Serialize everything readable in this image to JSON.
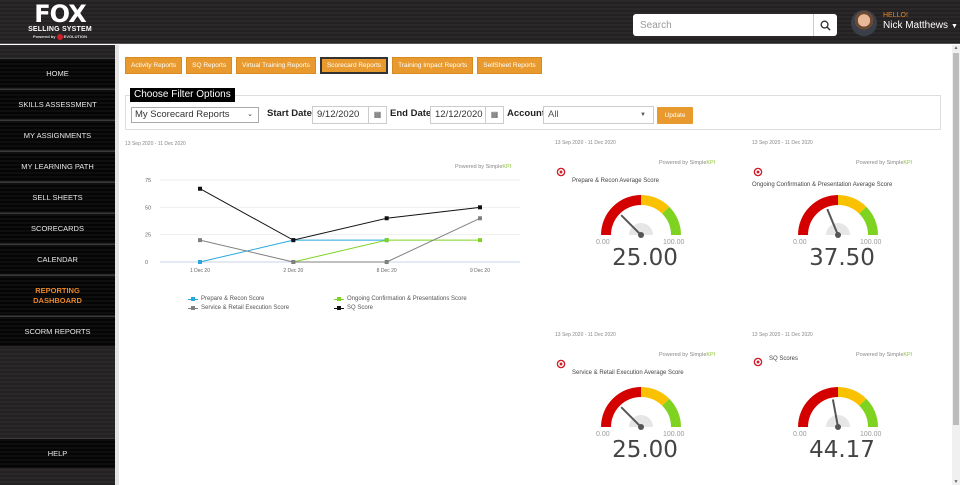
{
  "header": {
    "logo": {
      "main": "FOX",
      "sub": "SELLING SYSTEM",
      "powered": "Powered by",
      "brand": "EVOLUTION"
    },
    "search": {
      "placeholder": "Search",
      "value": ""
    },
    "user": {
      "greeting": "HELLO!",
      "name": "Nick Matthews"
    }
  },
  "sidebar": {
    "items": [
      {
        "label": "HOME"
      },
      {
        "label": "SKILLS ASSESSMENT"
      },
      {
        "label": "MY ASSIGNMENTS"
      },
      {
        "label": "MY LEARNING PATH"
      },
      {
        "label": "SELL SHEETS"
      },
      {
        "label": "SCORECARDS"
      },
      {
        "label": "CALENDAR"
      },
      {
        "label": "REPORTING DASHBOARD",
        "active": true
      },
      {
        "label": "SCORM REPORTS"
      }
    ],
    "help": "HELP"
  },
  "tabs": [
    {
      "label": "Activity Reports"
    },
    {
      "label": "SQ Reports"
    },
    {
      "label": "Virtual Training Reports"
    },
    {
      "label": "Scorecard Reports",
      "active": true
    },
    {
      "label": "Training Impact Reports"
    },
    {
      "label": "SellSheet Reports"
    }
  ],
  "filter": {
    "legend": "Choose Filter Options",
    "report_select": "My Scorecard Reports",
    "start_label": "Start Date",
    "start_value": "9/12/2020",
    "end_label": "End Date",
    "end_value": "12/12/2020",
    "account_label": "Account:",
    "account_value": "All",
    "update_label": "Update"
  },
  "date_range": "13 Sep 2020 - 11 Dec 2020",
  "powered_by": {
    "prefix": "Powered by Simple",
    "suffix": "KPI"
  },
  "colors": {
    "accent": "#e89a2e",
    "active_nav": "#e8862a",
    "gauge_red": "#d40000",
    "gauge_yellow": "#f9c100",
    "gauge_green": "#7ed321"
  },
  "chart_data": {
    "type": "line",
    "categories": [
      "1 Dec 20",
      "2 Dec 20",
      "8 Dec 20",
      "9 Dec 20"
    ],
    "yticks": [
      0,
      25,
      50,
      75
    ],
    "ylim": [
      0,
      80
    ],
    "grid": true,
    "legend_position": "bottom",
    "series": [
      {
        "name": "Prepare & Recon Score",
        "color": "#29a8e0",
        "values": [
          0,
          20,
          20,
          null
        ]
      },
      {
        "name": "Ongoing Confirmation & Presentations Score",
        "color": "#7ed321",
        "values": [
          null,
          0,
          20,
          20
        ]
      },
      {
        "name": "Service & Retail Execution Score",
        "color": "#808080",
        "values": [
          20,
          0,
          0,
          40
        ]
      },
      {
        "name": "SQ Score",
        "color": "#111111",
        "values": [
          67,
          20,
          40,
          50
        ]
      }
    ]
  },
  "gauges": [
    {
      "title": "Prepare & Recon Average Score",
      "min": "0.00",
      "max": "100.00",
      "value": "25.00",
      "numeric": 25
    },
    {
      "title": "Ongoing Confirmation & Presentation Average Score",
      "min": "0.00",
      "max": "100.00",
      "value": "37.50",
      "numeric": 37.5
    },
    {
      "title": "Service & Retail Execution Average Score",
      "min": "0.00",
      "max": "100.00",
      "value": "25.00",
      "numeric": 25
    },
    {
      "title": "SQ Scores",
      "min": "0.00",
      "max": "100.00",
      "value": "44.17",
      "numeric": 44.17
    }
  ]
}
